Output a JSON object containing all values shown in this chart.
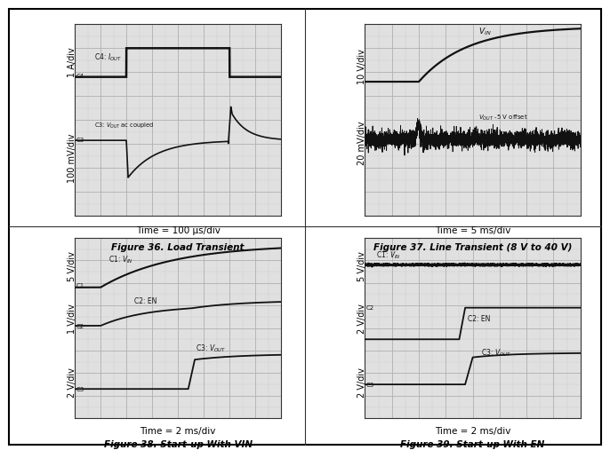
{
  "fig36_xlabel": "Time = 100 μs/div",
  "fig36_title": "Figure 36. Load Transient",
  "fig36_ylabel_top": "1 A/div",
  "fig36_ylabel_bot": "100 mV/div",
  "fig37_xlabel": "Time = 5 ms/div",
  "fig37_title": "Figure 37. Line Transient (8 V to 40 V)",
  "fig37_ylabel_top": "10 V/div",
  "fig37_ylabel_bot": "20 mV/div",
  "fig38_xlabel": "Time = 2 ms/div",
  "fig38_title": "Figure 38. Start-up With VIN",
  "fig38_ylabel_top": "5 V/div",
  "fig38_ylabel_mid": "1 V/div",
  "fig38_ylabel_bot": "2 V/div",
  "fig39_xlabel": "Time = 2 ms/div",
  "fig39_title": "Figure 39. Start-up With EN",
  "fig39_ylabel_top": "5 V/div",
  "fig39_ylabel_mid": "2 V/div",
  "fig39_ylabel_bot": "2 V/div",
  "grid_color": "#b0b0b0",
  "bg_color": "#e0e0e0",
  "line_color": "#111111",
  "border_color": "#555555",
  "nx": 8,
  "ny": 8,
  "label_fontsize": 7.0,
  "caption_fontsize": 7.5,
  "time_fontsize": 7.5,
  "inline_fontsize": 5.5,
  "marker_fontsize": 5.0
}
